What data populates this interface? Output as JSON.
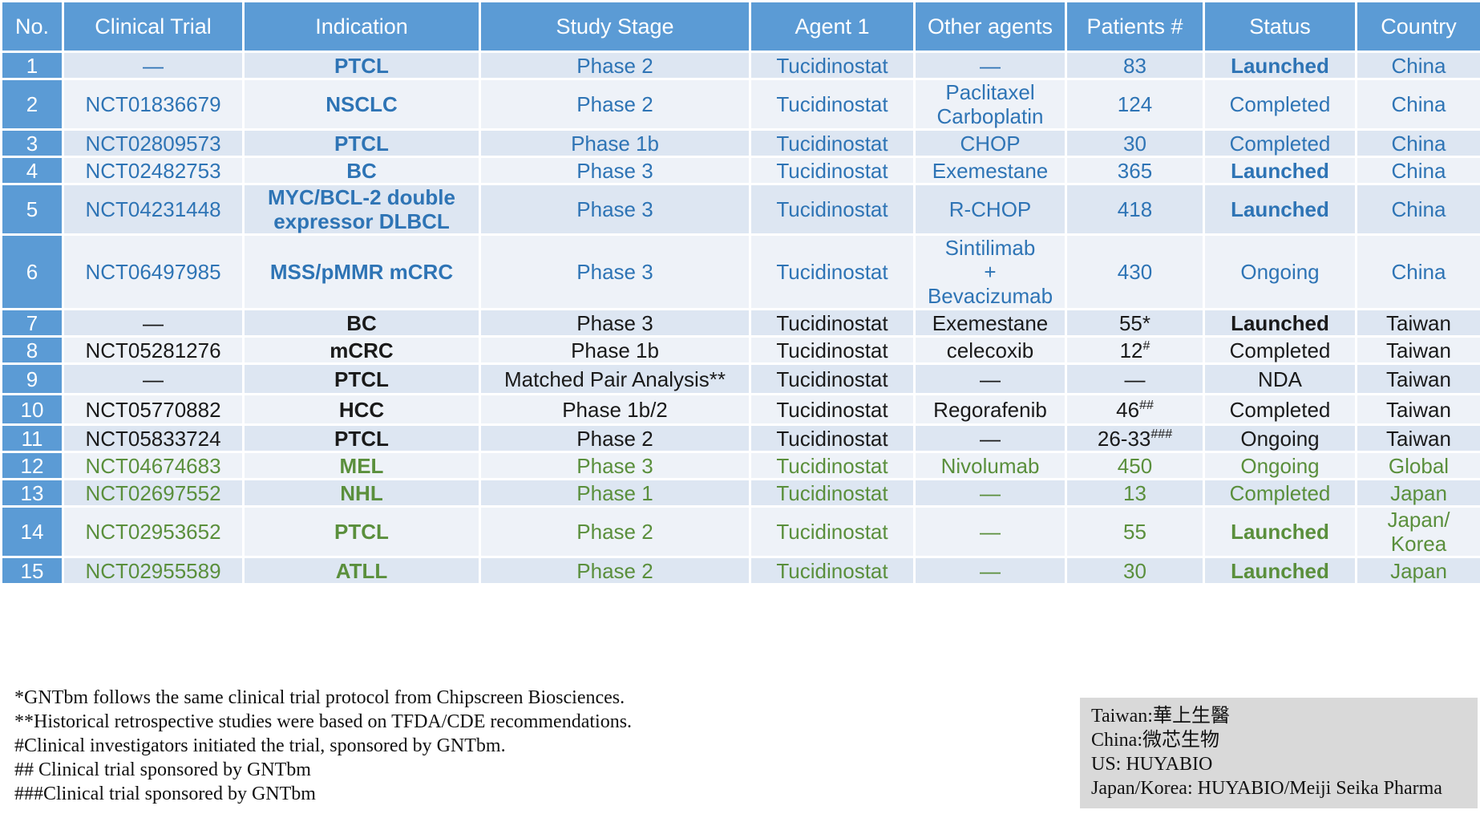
{
  "columns": [
    "No.",
    "Clinical Trial",
    "Indication",
    "Study Stage",
    "Agent 1",
    "Other agents",
    "Patients #",
    "Status",
    "Country"
  ],
  "colors": {
    "header": "#5b9bd5",
    "china": "#2e74b5",
    "taiwan": "#1a1a1a",
    "global": "#5a8f3c"
  },
  "rows": [
    {
      "no": "1",
      "trial": "—",
      "indication": "PTCL",
      "stage": "Phase 2",
      "agent": "Tucidinostat",
      "other": "—",
      "patients": "83",
      "sup": "",
      "status": "Launched",
      "country": "China",
      "group": "china"
    },
    {
      "no": "2",
      "trial": "NCT01836679",
      "indication": "NSCLC",
      "stage": "Phase 2",
      "agent": "Tucidinostat",
      "other": "Paclitaxel\nCarboplatin",
      "patients": "124",
      "sup": "",
      "status": "Completed",
      "country": "China",
      "group": "china"
    },
    {
      "no": "3",
      "trial": "NCT02809573",
      "indication": "PTCL",
      "stage": "Phase 1b",
      "agent": "Tucidinostat",
      "other": "CHOP",
      "patients": "30",
      "sup": "",
      "status": "Completed",
      "country": "China",
      "group": "china"
    },
    {
      "no": "4",
      "trial": "NCT02482753",
      "indication": "BC",
      "stage": "Phase 3",
      "agent": "Tucidinostat",
      "other": "Exemestane",
      "patients": "365",
      "sup": "",
      "status": "Launched",
      "country": "China",
      "group": "china"
    },
    {
      "no": "5",
      "trial": "NCT04231448",
      "indication": "MYC/BCL-2 double\nexpressor DLBCL",
      "stage": "Phase 3",
      "agent": "Tucidinostat",
      "other": "R-CHOP",
      "patients": "418",
      "sup": "",
      "status": "Launched",
      "country": "China",
      "group": "china"
    },
    {
      "no": "6",
      "trial": "NCT06497985",
      "indication": "MSS/pMMR mCRC",
      "stage": "Phase 3",
      "agent": "Tucidinostat",
      "other": "Sintilimab\n+\nBevacizumab",
      "patients": "430",
      "sup": "",
      "status": "Ongoing",
      "country": "China",
      "group": "china"
    },
    {
      "no": "7",
      "trial": "—",
      "indication": "BC",
      "stage": "Phase 3",
      "agent": "Tucidinostat",
      "other": "Exemestane",
      "patients": "55*",
      "sup": "",
      "status": "Launched",
      "country": "Taiwan",
      "group": "taiwan"
    },
    {
      "no": "8",
      "trial": "NCT05281276",
      "indication": "mCRC",
      "stage": "Phase 1b",
      "agent": "Tucidinostat",
      "other": "celecoxib",
      "patients": "12",
      "sup": "#",
      "status": "Completed",
      "country": "Taiwan",
      "group": "taiwan"
    },
    {
      "no": "9",
      "trial": "—",
      "indication": "PTCL",
      "stage": "Matched Pair Analysis**",
      "agent": "Tucidinostat",
      "other": "—",
      "patients": "—",
      "sup": "",
      "status": "NDA",
      "country": "Taiwan",
      "group": "taiwan"
    },
    {
      "no": "10",
      "trial": "NCT05770882",
      "indication": "HCC",
      "stage": "Phase 1b/2",
      "agent": "Tucidinostat",
      "other": "Regorafenib",
      "patients": "46",
      "sup": "##",
      "status": "Completed",
      "country": "Taiwan",
      "group": "taiwan"
    },
    {
      "no": "11",
      "trial": "NCT05833724",
      "indication": "PTCL",
      "stage": "Phase 2",
      "agent": "Tucidinostat",
      "other": "—",
      "patients": "26-33",
      "sup": "###",
      "status": "Ongoing",
      "country": "Taiwan",
      "group": "taiwan"
    },
    {
      "no": "12",
      "trial": "NCT04674683",
      "indication": "MEL",
      "stage": "Phase 3",
      "agent": "Tucidinostat",
      "other": "Nivolumab",
      "patients": "450",
      "sup": "",
      "status": "Ongoing",
      "country": "Global",
      "group": "global"
    },
    {
      "no": "13",
      "trial": "NCT02697552",
      "indication": "NHL",
      "stage": "Phase 1",
      "agent": "Tucidinostat",
      "other": "—",
      "patients": "13",
      "sup": "",
      "status": "Completed",
      "country": "Japan",
      "group": "global"
    },
    {
      "no": "14",
      "trial": "NCT02953652",
      "indication": "PTCL",
      "stage": "Phase 2",
      "agent": "Tucidinostat",
      "other": "—",
      "patients": "55",
      "sup": "",
      "status": "Launched",
      "country": "Japan/\nKorea",
      "group": "global"
    },
    {
      "no": "15",
      "trial": "NCT02955589",
      "indication": "ATLL",
      "stage": "Phase 2",
      "agent": "Tucidinostat",
      "other": "—",
      "patients": "30",
      "sup": "",
      "status": "Launched",
      "country": "Japan",
      "group": "global"
    }
  ],
  "footnotes": [
    "*GNTbm follows the same clinical trial protocol from Chipscreen Biosciences.",
    "**Historical retrospective studies were based on TFDA/CDE recommendations.",
    "#Clinical investigators initiated the trial, sponsored by GNTbm.",
    "## Clinical trial sponsored by GNTbm",
    "###Clinical trial sponsored by GNTbm"
  ],
  "sponsors": [
    "Taiwan:華上生醫",
    "China:微芯生物",
    "US: HUYABIO",
    "Japan/Korea: HUYABIO/Meiji Seika Pharma"
  ]
}
